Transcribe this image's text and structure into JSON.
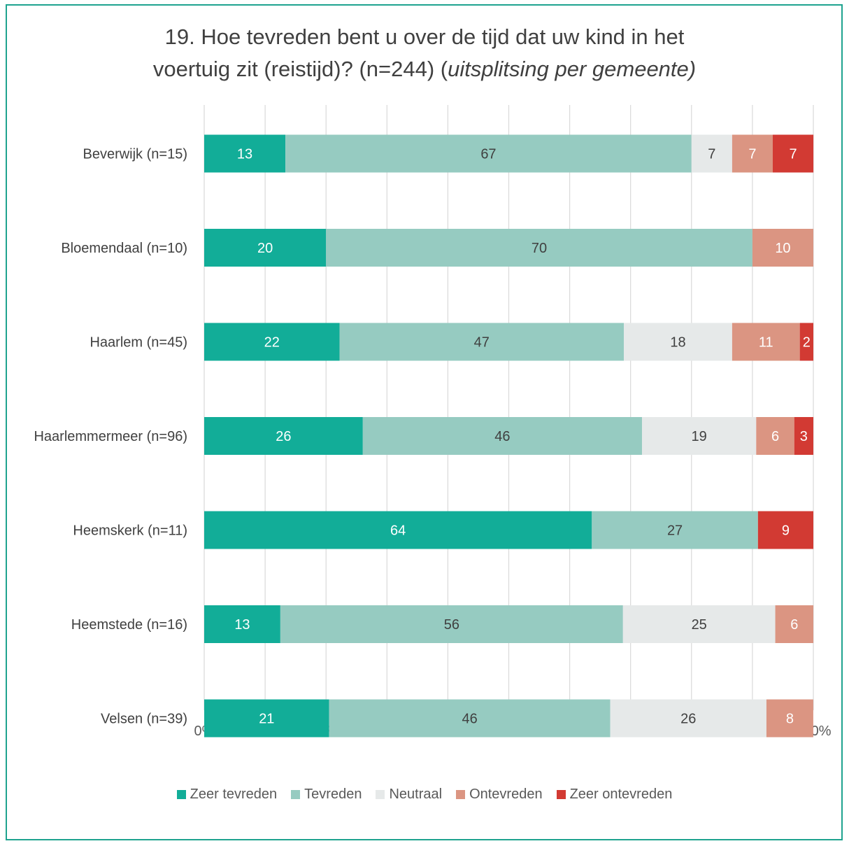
{
  "chart_data": {
    "type": "bar",
    "orientation": "horizontal",
    "stacked": true,
    "title": {
      "line1": "19. Hoe tevreden bent u over de tijd dat uw kind in het",
      "line2_normal": "voertuig zit (reistijd)? (n=244) (",
      "line2_italic": "uitsplitsing per gemeente)"
    },
    "categories": [
      "Beverwijk (n=15)",
      "Bloemendaal (n=10)",
      "Haarlem (n=45)",
      "Haarlemmermeer (n=96)",
      "Heemskerk (n=11)",
      "Heemstede (n=16)",
      "Velsen (n=39)"
    ],
    "series": [
      {
        "name": "Zeer tevreden",
        "color": "#12ad98",
        "label_color": "#ffffff",
        "values": [
          13.33,
          20,
          22.22,
          26.04,
          63.64,
          12.5,
          20.51
        ],
        "labels": [
          "13",
          "20",
          "22",
          "26",
          "64",
          "13",
          "21"
        ]
      },
      {
        "name": "Tevreden",
        "color": "#96cbc1",
        "label_color": "#404040",
        "values": [
          66.67,
          70,
          46.67,
          45.83,
          27.27,
          56.25,
          46.15
        ],
        "labels": [
          "67",
          "70",
          "47",
          "46",
          "27",
          "56",
          "46"
        ]
      },
      {
        "name": "Neutraal",
        "color": "#e6e9e9",
        "label_color": "#404040",
        "values": [
          6.67,
          0,
          17.78,
          18.75,
          0,
          25,
          25.64
        ],
        "labels": [
          "7",
          "",
          "18",
          "19",
          "",
          "25",
          "26"
        ]
      },
      {
        "name": "Ontevreden",
        "color": "#db9582",
        "label_color": "#ffffff",
        "values": [
          6.67,
          10,
          11.11,
          6.25,
          0,
          6.25,
          7.69
        ],
        "labels": [
          "7",
          "10",
          "11",
          "6",
          "",
          "6",
          "8"
        ]
      },
      {
        "name": "Zeer ontevreden",
        "color": "#d23a33",
        "label_color": "#ffffff",
        "values": [
          6.67,
          0,
          2.22,
          3.13,
          9.09,
          0,
          0
        ],
        "labels": [
          "7",
          "",
          "2",
          "3",
          "9",
          "",
          ""
        ]
      }
    ],
    "xlim": [
      0,
      100
    ],
    "xticks": [
      "0%",
      "10%",
      "20%",
      "30%",
      "40%",
      "50%",
      "60%",
      "70%",
      "80%",
      "90%",
      "100%"
    ],
    "grid": true,
    "legend_position": "bottom"
  }
}
